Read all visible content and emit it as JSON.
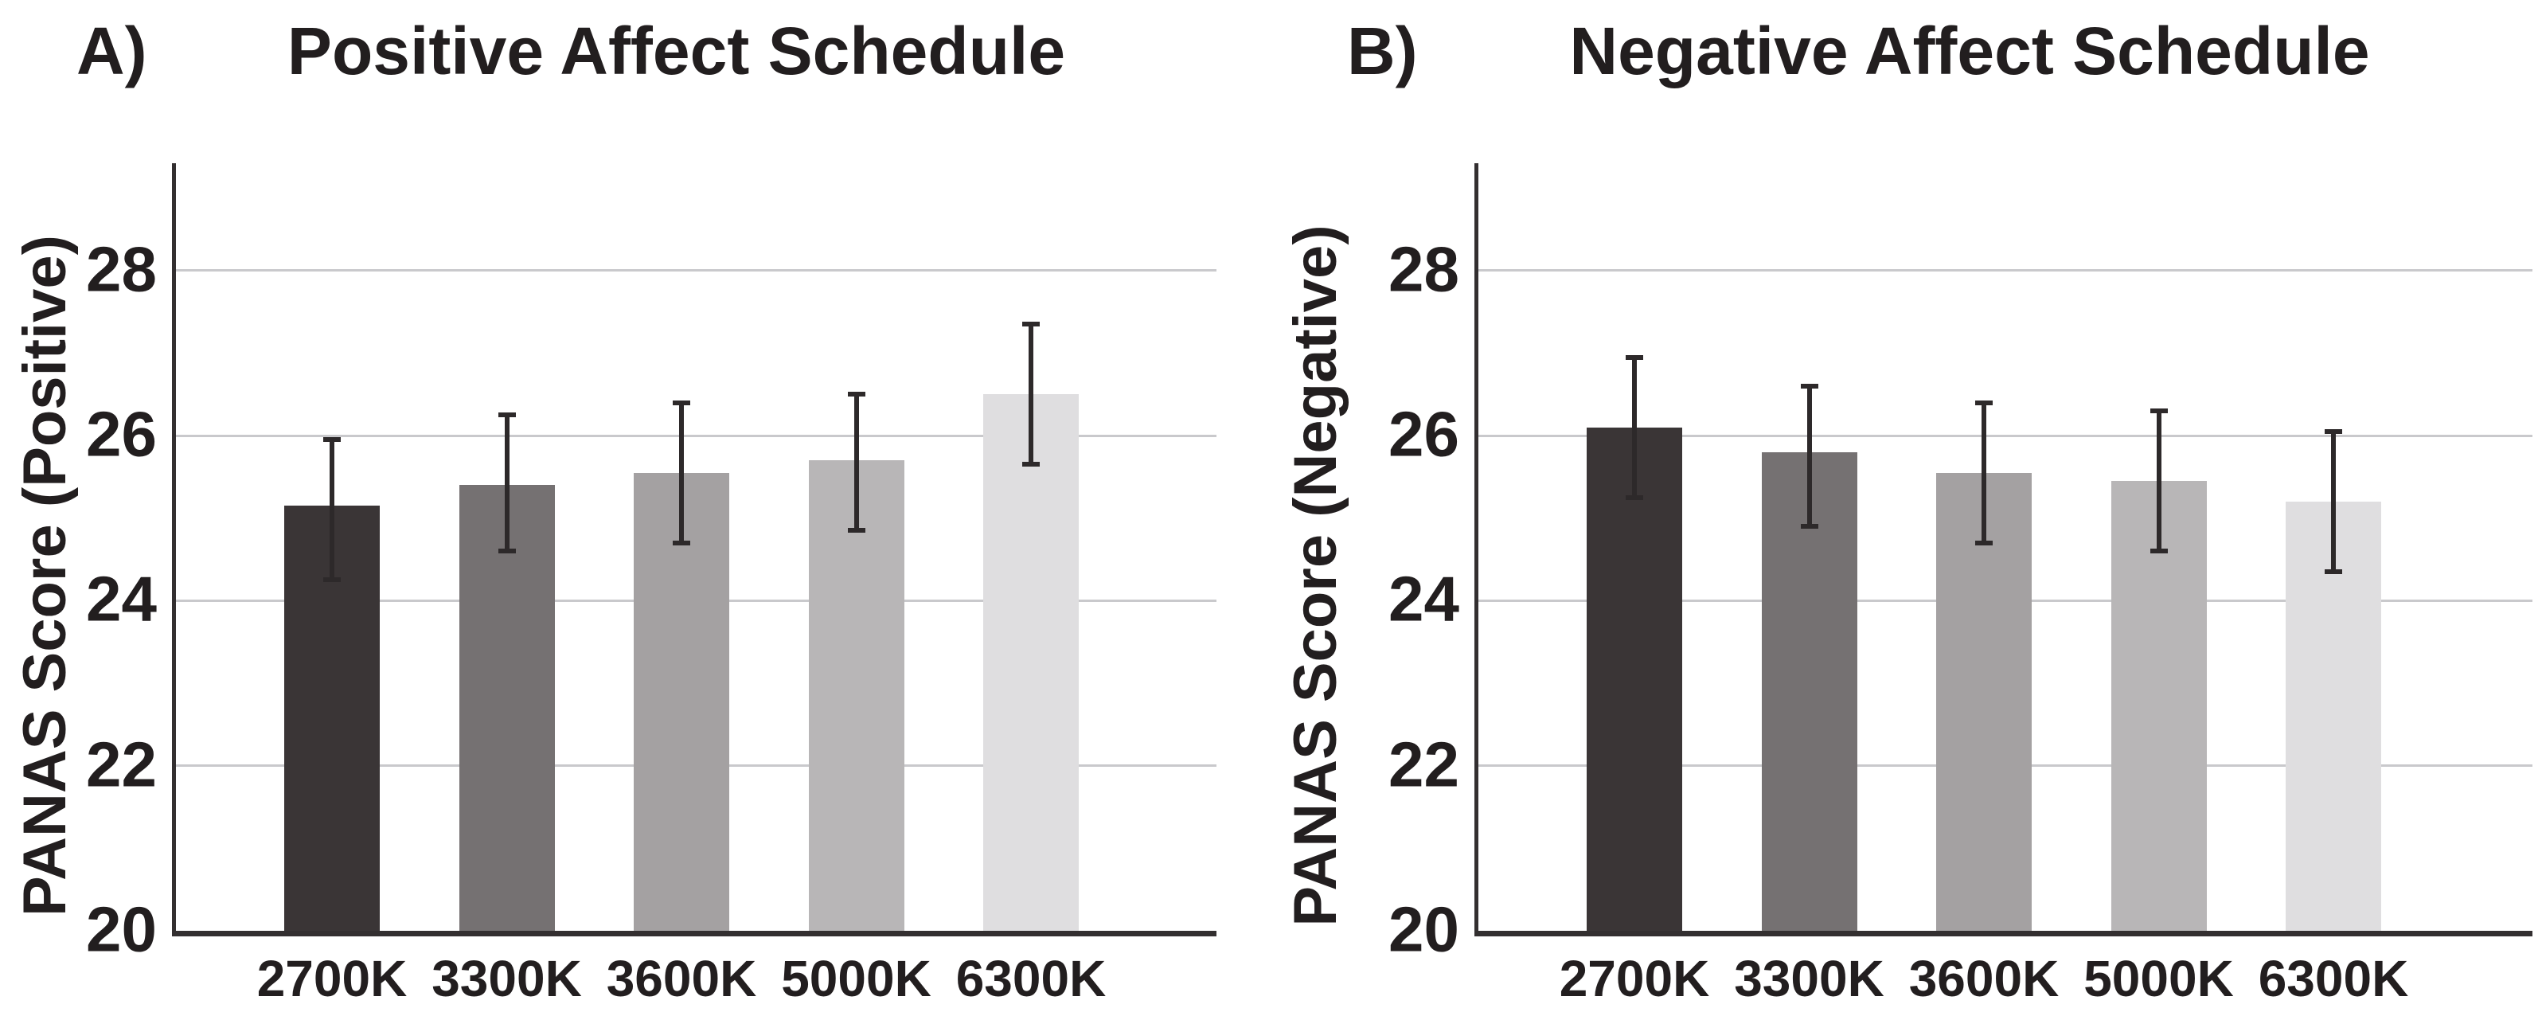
{
  "chart_data": [
    {
      "type": "bar",
      "panel_label": "A)",
      "title": "Positive Affect Schedule",
      "ylabel": "PANAS Score (Positive)",
      "xlabel": "",
      "categories": [
        "2700K",
        "3300K",
        "3600K",
        "5000K",
        "6300K"
      ],
      "values": [
        25.15,
        25.4,
        25.55,
        25.7,
        26.5
      ],
      "error_low": [
        24.25,
        24.6,
        24.7,
        24.85,
        25.65
      ],
      "error_high": [
        25.95,
        26.25,
        26.4,
        26.5,
        27.35
      ],
      "ylim": [
        20,
        29.3
      ],
      "yticks": [
        20,
        22,
        24,
        26,
        28
      ],
      "grid": true,
      "legend": false
    },
    {
      "type": "bar",
      "panel_label": "B)",
      "title": "Negative Affect Schedule",
      "ylabel": "PANAS Score (Negative)",
      "xlabel": "",
      "categories": [
        "2700K",
        "3300K",
        "3600K",
        "5000K",
        "6300K"
      ],
      "values": [
        26.1,
        25.8,
        25.55,
        25.45,
        25.2
      ],
      "error_low": [
        25.25,
        24.9,
        24.7,
        24.6,
        24.35
      ],
      "error_high": [
        26.95,
        26.6,
        26.4,
        26.3,
        26.05
      ],
      "ylim": [
        20,
        29.3
      ],
      "yticks": [
        20,
        22,
        24,
        26,
        28
      ],
      "grid": true,
      "legend": false
    }
  ],
  "style": {
    "bar_colors": [
      "#3a3536",
      "#757172",
      "#a4a1a2",
      "#b8b6b7",
      "#dfdee0"
    ],
    "grid_color": "#c9c9cc",
    "axis_color": "#332f30",
    "error_color": "#2d292a",
    "text_color": "#221e1f",
    "background": "#ffffff"
  }
}
